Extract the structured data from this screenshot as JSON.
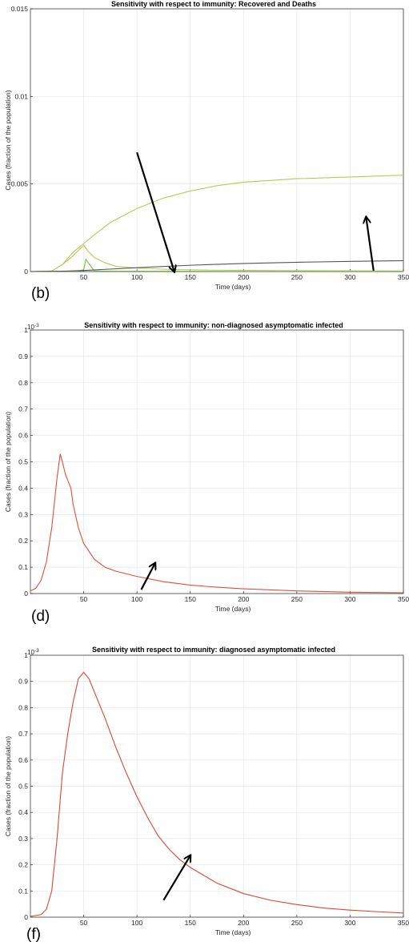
{
  "chart_data": [
    {
      "type": "line",
      "panel": "(b)",
      "title": "Sensitivity with respect to immunity: Recovered and Deaths",
      "xlabel": "Time (days)",
      "ylabel": "Cases (fraction of the population)",
      "xlim": [
        0,
        350
      ],
      "ylim": [
        0,
        0.015
      ],
      "xticks": [
        50,
        100,
        150,
        200,
        250,
        300,
        350
      ],
      "yticks": [
        0,
        0.005,
        0.01,
        0.015
      ],
      "xtick_labels": [
        "50",
        "100",
        "150",
        "200",
        "250",
        "300",
        "350"
      ],
      "ytick_labels": [
        "0",
        "0.005",
        "0.01",
        "0.015"
      ],
      "grid": true,
      "colors": {
        "recovered": "#b5cc55",
        "green": "#6ec040",
        "deaths": "#555555"
      },
      "series": [
        {
          "color": "#b5cc55",
          "x": [
            0,
            20,
            30,
            40,
            50,
            60,
            75,
            100,
            125,
            150,
            175,
            200,
            250,
            300,
            350
          ],
          "y": [
            0,
            3e-05,
            0.0004,
            0.0011,
            0.0016,
            0.0021,
            0.0028,
            0.0036,
            0.0042,
            0.0046,
            0.0049,
            0.0051,
            0.0053,
            0.0054,
            0.0055
          ]
        },
        {
          "color": "#b5cc55",
          "x": [
            0,
            20,
            30,
            40,
            50,
            55,
            60,
            70,
            80,
            100,
            130,
            170,
            250,
            350
          ],
          "y": [
            0,
            3e-05,
            0.0004,
            0.0009,
            0.0015,
            0.0011,
            0.0008,
            0.0005,
            0.0003,
            0.0002,
            0.00012,
            8e-05,
            5e-05,
            3e-05
          ]
        },
        {
          "color": "#6ec040",
          "x": [
            0,
            30,
            45,
            50,
            52,
            60,
            100,
            200,
            350
          ],
          "y": [
            0,
            1e-05,
            3e-05,
            0.0001,
            0.0007,
            3e-05,
            2e-05,
            1e-05,
            1e-05
          ]
        },
        {
          "color": "#555555",
          "x": [
            0,
            30,
            50,
            100,
            150,
            200,
            250,
            300,
            350
          ],
          "y": [
            0,
            2e-05,
            6e-05,
            0.00022,
            0.00036,
            0.00046,
            0.00053,
            0.00058,
            0.00062
          ]
        }
      ],
      "arrows": [
        {
          "from": [
            100,
            0.0068
          ],
          "to": [
            135,
            0
          ]
        },
        {
          "from": [
            322,
            5e-05
          ],
          "to": [
            315,
            0.0031
          ]
        }
      ]
    },
    {
      "type": "line",
      "panel": "(d)",
      "title": "Sensitivity with respect to immunity: non-diagnosed asymptomatic infected",
      "xlabel": "Time (days)",
      "ylabel": "Cases (fraction of the population)",
      "xlim": [
        0,
        350
      ],
      "ylim": [
        0,
        1
      ],
      "yscale_label": "10",
      "yscale_exp": "-3",
      "xticks": [
        50,
        100,
        150,
        200,
        250,
        300,
        350
      ],
      "yticks": [
        0,
        0.1,
        0.2,
        0.3,
        0.4,
        0.5,
        0.6,
        0.7,
        0.8,
        0.9,
        1
      ],
      "xtick_labels": [
        "50",
        "100",
        "150",
        "200",
        "250",
        "300",
        "350"
      ],
      "ytick_labels": [
        "0",
        "0.1",
        "0.2",
        "0.3",
        "0.4",
        "0.5",
        "0.6",
        "0.7",
        "0.8",
        "0.9",
        "1"
      ],
      "grid": true,
      "colors": {
        "line": "#e0503c"
      },
      "series": [
        {
          "color": "#e0503c",
          "x": [
            0,
            5,
            10,
            15,
            20,
            25,
            28,
            30,
            33,
            36,
            38,
            40,
            45,
            50,
            60,
            70,
            80,
            100,
            125,
            150,
            175,
            200,
            250,
            300,
            350
          ],
          "y": [
            0.01,
            0.02,
            0.05,
            0.12,
            0.25,
            0.44,
            0.53,
            0.5,
            0.45,
            0.42,
            0.4,
            0.34,
            0.25,
            0.19,
            0.13,
            0.1,
            0.085,
            0.065,
            0.045,
            0.032,
            0.024,
            0.018,
            0.01,
            0.005,
            0.003
          ]
        }
      ],
      "arrows": [
        {
          "from": [
            104,
            0.015
          ],
          "to": [
            117,
            0.115
          ]
        }
      ]
    },
    {
      "type": "line",
      "panel": "(f)",
      "title": "Sensitivity with respect to immunity: diagnosed asymptomatic infected",
      "xlabel": "Time (days)",
      "ylabel": "Cases (fraction of the population)",
      "xlim": [
        0,
        350
      ],
      "ylim": [
        0,
        1
      ],
      "yscale_label": "10",
      "yscale_exp": "-3",
      "xticks": [
        50,
        100,
        150,
        200,
        250,
        300,
        350
      ],
      "yticks": [
        0,
        0.1,
        0.2,
        0.3,
        0.4,
        0.5,
        0.6,
        0.7,
        0.8,
        0.9,
        1
      ],
      "xtick_labels": [
        "50",
        "100",
        "150",
        "200",
        "250",
        "300",
        "350"
      ],
      "ytick_labels": [
        "0",
        "0.1",
        "0.2",
        "0.3",
        "0.4",
        "0.5",
        "0.6",
        "0.7",
        "0.8",
        "0.9",
        "1"
      ],
      "grid": true,
      "colors": {
        "line": "#d64a32"
      },
      "series": [
        {
          "color": "#d64a32",
          "x": [
            0,
            10,
            15,
            20,
            25,
            30,
            35,
            40,
            45,
            50,
            55,
            60,
            70,
            80,
            90,
            100,
            110,
            120,
            130,
            140,
            150,
            175,
            200,
            225,
            250,
            275,
            300,
            325,
            350
          ],
          "y": [
            0.003,
            0.01,
            0.03,
            0.1,
            0.3,
            0.55,
            0.7,
            0.82,
            0.91,
            0.935,
            0.91,
            0.86,
            0.76,
            0.65,
            0.55,
            0.46,
            0.38,
            0.31,
            0.26,
            0.22,
            0.19,
            0.13,
            0.09,
            0.065,
            0.048,
            0.035,
            0.027,
            0.021,
            0.016
          ]
        }
      ],
      "arrows": [
        {
          "from": [
            125,
            0.065
          ],
          "to": [
            150,
            0.235
          ]
        }
      ]
    }
  ]
}
